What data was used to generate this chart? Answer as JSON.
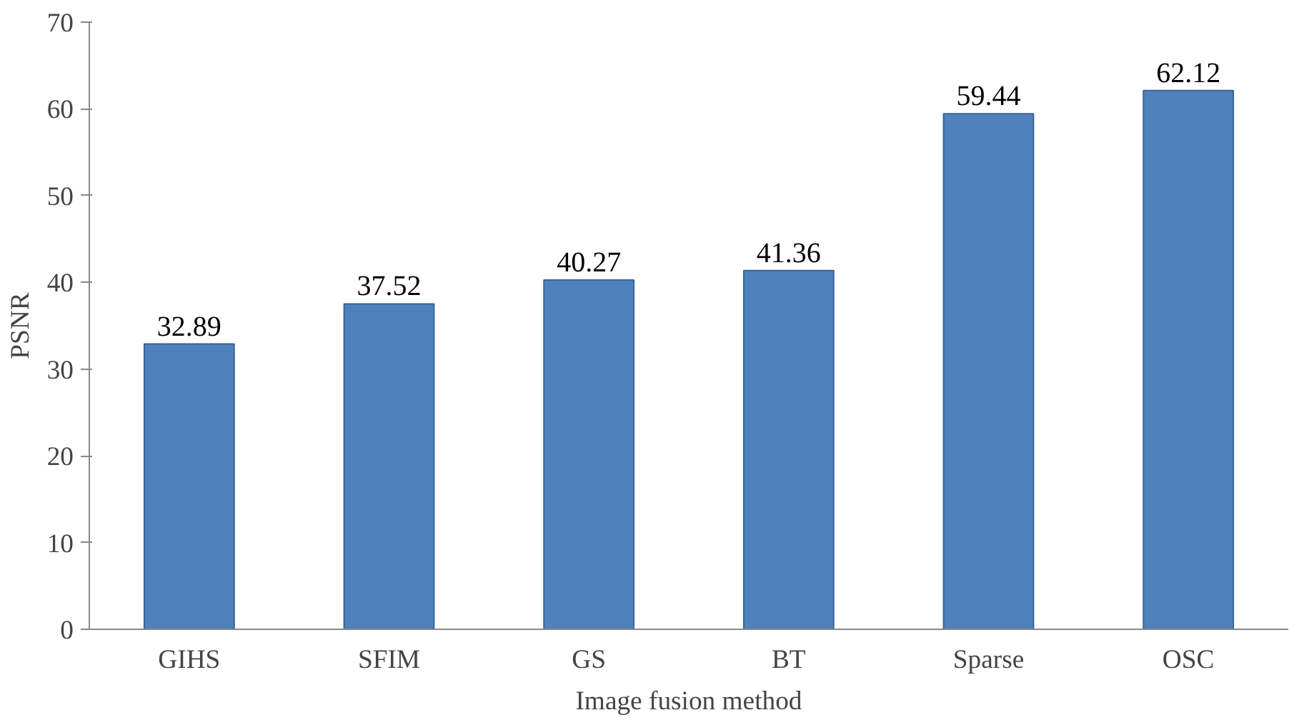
{
  "chart_data": {
    "type": "bar",
    "xlabel": "Image fusion method",
    "ylabel": "PSNR",
    "categories": [
      "GIHS",
      "SFIM",
      "GS",
      "BT",
      "Sparse",
      "OSC"
    ],
    "values": [
      32.89,
      37.52,
      40.27,
      41.36,
      59.44,
      62.12
    ],
    "color": "#4f81bd",
    "ylim": [
      0,
      70
    ],
    "yticks": [
      0,
      10,
      20,
      30,
      40,
      50,
      60,
      70
    ],
    "data_labels": true,
    "grid": false
  }
}
